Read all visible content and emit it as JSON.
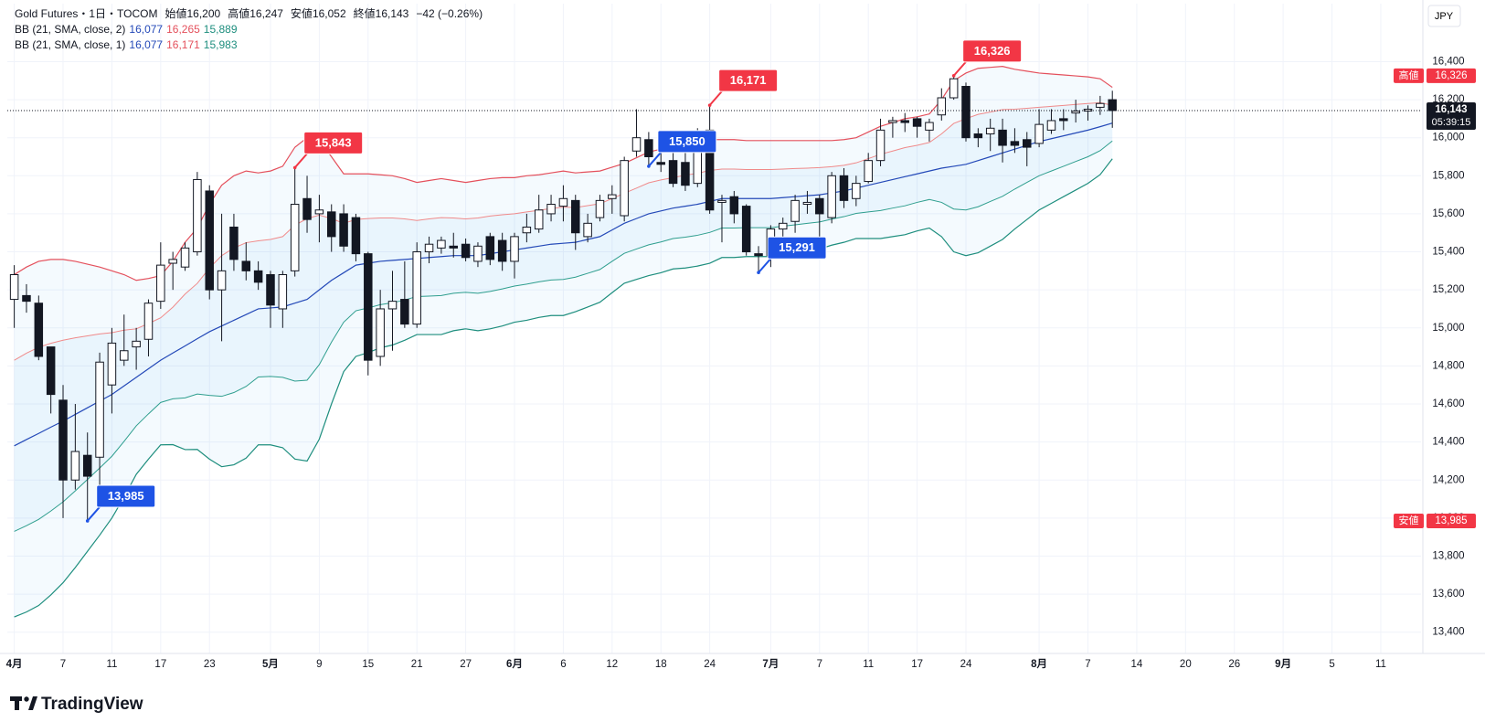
{
  "chart_data": {
    "type": "candlestick",
    "title": "Gold Futures・1日・TOCOM",
    "ohlc_legend": [
      {
        "name": "始値",
        "value": 16200,
        "label": "16,200"
      },
      {
        "name": "高値",
        "value": 16247,
        "label": "16,247"
      },
      {
        "name": "安値",
        "value": 16052,
        "label": "16,052"
      },
      {
        "name": "終値",
        "value": 16143,
        "label": "16,143"
      }
    ],
    "change": "−42 (−0.26%)",
    "indicators": [
      {
        "name": "BB (21, SMA, close, 2)",
        "values": [
          {
            "value": 16077,
            "label": "16,077",
            "color": "#2449b8"
          },
          {
            "value": 16265,
            "label": "16,265",
            "color": "#e4505c"
          },
          {
            "value": 15889,
            "label": "15,889",
            "color": "#1e8e7e"
          }
        ]
      },
      {
        "name": "BB (21, SMA, close, 1)",
        "values": [
          {
            "value": 16077,
            "label": "16,077",
            "color": "#2449b8"
          },
          {
            "value": 16171,
            "label": "16,171",
            "color": "#e4505c"
          },
          {
            "value": 15983,
            "label": "15,983",
            "color": "#1e8e7e"
          }
        ]
      }
    ],
    "currency": "JPY",
    "logo": "TradingView",
    "open": [
      15150,
      15170,
      15130,
      14900,
      14620,
      14200,
      14330,
      14320,
      14700,
      14830,
      14900,
      14940,
      15140,
      15340,
      15320,
      15400,
      15720,
      15200,
      15530,
      15350,
      15300,
      15280,
      15100,
      15300,
      15680,
      15600,
      15610,
      15600,
      15580,
      15390,
      14850,
      15100,
      15150,
      15020,
      15400,
      15420,
      15430,
      15440,
      15350,
      15480,
      15460,
      15350,
      15500,
      15520,
      15600,
      15640,
      15670,
      15480,
      15580,
      15680,
      15590,
      15930,
      15990,
      15870,
      15880,
      15870,
      15760,
      16040,
      15660,
      15690,
      15640,
      15390,
      15380,
      15520,
      15560,
      15650,
      15680,
      15580,
      15800,
      15680,
      15770,
      15880,
      16080,
      16090,
      16100,
      16040,
      16120,
      16210,
      16270,
      16020,
      16020,
      16040,
      15980,
      15990,
      15970,
      16040,
      16100,
      16130,
      16140,
      16160,
      16200
    ],
    "high": [
      15330,
      15230,
      15170,
      14900,
      14700,
      14600,
      14450,
      14870,
      15000,
      15070,
      15000,
      15150,
      15450,
      15400,
      15450,
      15820,
      15750,
      15600,
      15600,
      15450,
      15350,
      15300,
      15300,
      15843,
      15800,
      15700,
      15650,
      15650,
      15600,
      15400,
      15200,
      15300,
      15350,
      15450,
      15480,
      15480,
      15500,
      15470,
      15450,
      15500,
      15500,
      15500,
      15600,
      15700,
      15700,
      15750,
      15700,
      15600,
      15700,
      15750,
      15900,
      16150,
      16030,
      15920,
      15920,
      15920,
      16050,
      16171,
      15700,
      15720,
      15650,
      15430,
      15540,
      15580,
      15700,
      15720,
      15700,
      15820,
      15840,
      15800,
      15920,
      16100,
      16110,
      16130,
      16110,
      16100,
      16260,
      16326,
      16290,
      16050,
      16100,
      16100,
      16050,
      16030,
      16150,
      16150,
      16150,
      16200,
      16170,
      16220,
      16247
    ],
    "low": [
      15000,
      15080,
      14830,
      14550,
      14000,
      14150,
      13985,
      14150,
      14550,
      14800,
      14780,
      14850,
      15100,
      15200,
      15300,
      15380,
      15150,
      14930,
      15300,
      15250,
      15200,
      15000,
      15000,
      15270,
      15500,
      15450,
      15400,
      15400,
      15350,
      14750,
      14800,
      14880,
      15000,
      15000,
      15340,
      15390,
      15370,
      15350,
      15320,
      15330,
      15300,
      15260,
      15450,
      15500,
      15560,
      15560,
      15410,
      15450,
      15560,
      15600,
      15560,
      15900,
      15850,
      15820,
      15740,
      15720,
      15740,
      15600,
      15450,
      15550,
      15380,
      15291,
      15320,
      15450,
      15500,
      15600,
      15450,
      15550,
      15630,
      15640,
      15760,
      15850,
      16000,
      16030,
      16000,
      15980,
      16090,
      16200,
      15980,
      15950,
      15930,
      15870,
      15920,
      15850,
      15950,
      16020,
      16040,
      16080,
      16090,
      16120,
      16052
    ],
    "close": [
      15280,
      15140,
      14850,
      14650,
      14200,
      14350,
      14220,
      14820,
      14920,
      14880,
      14930,
      15130,
      15330,
      15360,
      15420,
      15780,
      15200,
      15300,
      15360,
      15300,
      15240,
      15120,
      15280,
      15650,
      15570,
      15620,
      15480,
      15430,
      15390,
      14830,
      15100,
      15140,
      15020,
      15400,
      15440,
      15460,
      15420,
      15370,
      15430,
      15360,
      15350,
      15480,
      15530,
      15620,
      15650,
      15680,
      15500,
      15550,
      15670,
      15700,
      15880,
      16000,
      15900,
      15860,
      15760,
      15750,
      15990,
      15620,
      15670,
      15600,
      15400,
      15380,
      15520,
      15550,
      15670,
      15660,
      15600,
      15800,
      15670,
      15760,
      15880,
      16040,
      16090,
      16080,
      16060,
      16080,
      16210,
      16310,
      16000,
      16000,
      16050,
      15960,
      15960,
      15950,
      16070,
      16090,
      16090,
      16140,
      16150,
      16180,
      16143
    ],
    "bands": [
      {
        "color": "#e4505c",
        "values": [
          15280,
          15320,
          15350,
          15360,
          15360,
          15350,
          15335,
          15320,
          15300,
          15280,
          15250,
          15260,
          15275,
          15350,
          15450,
          15525,
          15650,
          15750,
          15800,
          15825,
          15815,
          15825,
          15850,
          15950,
          16000,
          15985,
          15900,
          15810,
          15810,
          15810,
          15805,
          15800,
          15785,
          15765,
          15775,
          15785,
          15775,
          15765,
          15775,
          15785,
          15790,
          15790,
          15800,
          15805,
          15815,
          15825,
          15815,
          15820,
          15825,
          15845,
          15865,
          15895,
          15925,
          15940,
          15950,
          15965,
          15975,
          15990,
          15990,
          15990,
          15985,
          15985,
          15985,
          15985,
          15985,
          15985,
          15985,
          15985,
          15990,
          16000,
          16030,
          16060,
          16080,
          16100,
          16110,
          16125,
          16200,
          16300,
          16340,
          16365,
          16370,
          16375,
          16360,
          16350,
          16340,
          16335,
          16330,
          16325,
          16320,
          16310,
          16265
        ]
      },
      {
        "color": "#f08a8a",
        "values": [
          14830,
          14867,
          14898,
          14919,
          14935,
          14948,
          14958,
          14968,
          14975,
          14988,
          14995,
          15023,
          15053,
          15109,
          15178,
          15234,
          15315,
          15380,
          15420,
          15448,
          15458,
          15465,
          15480,
          15540,
          15575,
          15593,
          15575,
          15550,
          15570,
          15575,
          15578,
          15578,
          15573,
          15565,
          15573,
          15580,
          15578,
          15573,
          15578,
          15588,
          15595,
          15600,
          15610,
          15618,
          15628,
          15635,
          15633,
          15643,
          15653,
          15680,
          15708,
          15735,
          15763,
          15778,
          15790,
          15803,
          15813,
          15828,
          15835,
          15835,
          15833,
          15833,
          15833,
          15835,
          15838,
          15840,
          15843,
          15848,
          15855,
          15868,
          15890,
          15913,
          15930,
          15948,
          15960,
          15975,
          16020,
          16075,
          16100,
          16123,
          16135,
          16148,
          16150,
          16155,
          16160,
          16165,
          16170,
          16175,
          16180,
          16184,
          16171
        ]
      },
      {
        "color": "#2449b8",
        "values": [
          14380,
          14413,
          14445,
          14478,
          14510,
          14545,
          14580,
          14615,
          14650,
          14695,
          14740,
          14785,
          14830,
          14868,
          14905,
          14943,
          14980,
          15010,
          15040,
          15070,
          15100,
          15105,
          15110,
          15130,
          15150,
          15200,
          15250,
          15290,
          15330,
          15340,
          15350,
          15355,
          15360,
          15365,
          15370,
          15375,
          15380,
          15380,
          15380,
          15390,
          15400,
          15410,
          15420,
          15430,
          15440,
          15445,
          15450,
          15465,
          15480,
          15515,
          15550,
          15575,
          15600,
          15615,
          15630,
          15640,
          15650,
          15665,
          15680,
          15680,
          15680,
          15680,
          15680,
          15685,
          15690,
          15695,
          15700,
          15710,
          15720,
          15735,
          15750,
          15765,
          15780,
          15795,
          15810,
          15825,
          15840,
          15850,
          15860,
          15880,
          15900,
          15920,
          15940,
          15960,
          15980,
          15995,
          16010,
          16025,
          16040,
          16058,
          16077
        ]
      },
      {
        "color": "#2e9e8e",
        "values": [
          13930,
          13960,
          13993,
          14037,
          14085,
          14143,
          14203,
          14263,
          14325,
          14403,
          14485,
          14548,
          14608,
          14627,
          14632,
          14652,
          14645,
          14640,
          14660,
          14692,
          14742,
          14745,
          14740,
          14720,
          14725,
          14807,
          14925,
          15030,
          15090,
          15105,
          15122,
          15132,
          15147,
          15165,
          15167,
          15170,
          15182,
          15187,
          15182,
          15192,
          15205,
          15220,
          15230,
          15242,
          15252,
          15255,
          15267,
          15287,
          15307,
          15350,
          15392,
          15415,
          15437,
          15452,
          15470,
          15477,
          15487,
          15502,
          15525,
          15525,
          15527,
          15527,
          15527,
          15535,
          15542,
          15550,
          15557,
          15572,
          15585,
          15602,
          15610,
          15617,
          15630,
          15642,
          15660,
          15675,
          15660,
          15625,
          15620,
          15637,
          15665,
          15692,
          15730,
          15765,
          15800,
          15825,
          15850,
          15875,
          15900,
          15932,
          15983
        ]
      },
      {
        "color": "#1e8e7e",
        "values": [
          13480,
          13506,
          13540,
          13596,
          13660,
          13740,
          13825,
          13910,
          14000,
          14110,
          14230,
          14310,
          14385,
          14386,
          14360,
          14361,
          14310,
          14270,
          14280,
          14315,
          14385,
          14385,
          14370,
          14310,
          14300,
          14415,
          14600,
          14770,
          14850,
          14870,
          14895,
          14910,
          14935,
          14965,
          14965,
          14965,
          14985,
          14995,
          14985,
          14995,
          15010,
          15030,
          15040,
          15055,
          15065,
          15065,
          15085,
          15110,
          15135,
          15185,
          15235,
          15255,
          15275,
          15290,
          15310,
          15315,
          15325,
          15340,
          15370,
          15370,
          15375,
          15375,
          15375,
          15385,
          15395,
          15405,
          15415,
          15435,
          15450,
          15470,
          15470,
          15470,
          15480,
          15490,
          15510,
          15525,
          15480,
          15400,
          15380,
          15395,
          15430,
          15465,
          15520,
          15570,
          15620,
          15655,
          15690,
          15725,
          15760,
          15806,
          15889
        ]
      }
    ],
    "fill_color": "#2196f3",
    "xlim": [
      -0.57,
      115.3
    ],
    "xticks": [
      {
        "value": 0,
        "label": "4月"
      },
      {
        "value": 4,
        "label": "7"
      },
      {
        "value": 8,
        "label": "11"
      },
      {
        "value": 12,
        "label": "17"
      },
      {
        "value": 16,
        "label": "23"
      },
      {
        "value": 21,
        "label": "5月"
      },
      {
        "value": 25,
        "label": "9"
      },
      {
        "value": 29,
        "label": "15"
      },
      {
        "value": 33,
        "label": "21"
      },
      {
        "value": 37,
        "label": "27"
      },
      {
        "value": 41,
        "label": "6月"
      },
      {
        "value": 45,
        "label": "6"
      },
      {
        "value": 49,
        "label": "12"
      },
      {
        "value": 53,
        "label": "18"
      },
      {
        "value": 57,
        "label": "24"
      },
      {
        "value": 62,
        "label": "7月"
      },
      {
        "value": 66,
        "label": "7"
      },
      {
        "value": 70,
        "label": "11"
      },
      {
        "value": 74,
        "label": "17"
      },
      {
        "value": 78,
        "label": "24"
      },
      {
        "value": 84,
        "label": "8月"
      },
      {
        "value": 88,
        "label": "7"
      },
      {
        "value": 92,
        "label": "14"
      },
      {
        "value": 96,
        "label": "20"
      },
      {
        "value": 100,
        "label": "26"
      },
      {
        "value": 104,
        "label": "9月"
      },
      {
        "value": 108,
        "label": "5"
      },
      {
        "value": 112,
        "label": "11"
      }
    ],
    "ylim": [
      13288,
      16705
    ],
    "yticks": [
      {
        "value": 13400,
        "label": "13,400"
      },
      {
        "value": 13600,
        "label": "13,600"
      },
      {
        "value": 13800,
        "label": "13,800"
      },
      {
        "value": 14000,
        "label": "14,000"
      },
      {
        "value": 14200,
        "label": "14,200"
      },
      {
        "value": 14400,
        "label": "14,400"
      },
      {
        "value": 14600,
        "label": "14,600"
      },
      {
        "value": 14800,
        "label": "14,800"
      },
      {
        "value": 15000,
        "label": "15,000"
      },
      {
        "value": 15200,
        "label": "15,200"
      },
      {
        "value": 15400,
        "label": "15,400"
      },
      {
        "value": 15600,
        "label": "15,600"
      },
      {
        "value": 15800,
        "label": "15,800"
      },
      {
        "value": 16000,
        "label": "16,000"
      },
      {
        "value": 16200,
        "label": "16,200"
      },
      {
        "value": 16400,
        "label": "16,400"
      }
    ],
    "grid": true,
    "annotations": [
      {
        "value": 15843,
        "label": "15,843",
        "color": "#f23645"
      },
      {
        "value": 16171,
        "label": "16,171",
        "color": "#f23645"
      },
      {
        "value": 16326,
        "label": "16,326",
        "color": "#f23645"
      },
      {
        "value": 13985,
        "label": "13,985",
        "color": "#1e53e5"
      },
      {
        "value": 15291,
        "label": "15,291",
        "color": "#1e53e5"
      },
      {
        "value": 15850,
        "label": "15,850",
        "color": "#1e53e5"
      }
    ],
    "high_tag": {
      "text": "高値",
      "value": 16326,
      "label": "16,326",
      "color": "#f23645"
    },
    "low_tag": {
      "text": "安値",
      "value": 13985,
      "label": "13,985",
      "color": "#f23645"
    },
    "last": {
      "value": 16143,
      "label": "16,143",
      "countdown": "05:39:15",
      "color": "#131722"
    }
  }
}
